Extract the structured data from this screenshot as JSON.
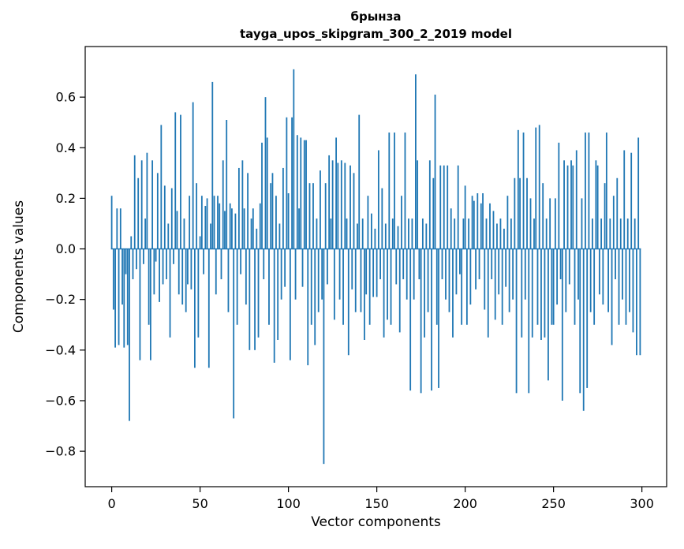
{
  "chart_data": {
    "type": "bar",
    "title": "брынза",
    "subtitle": "tayga_upos_skipgram_300_2_2019 model",
    "xlabel": "Vector components",
    "ylabel": "Components values",
    "xlim": [
      -15,
      314
    ],
    "ylim": [
      -0.94,
      0.8
    ],
    "xticks": [
      0,
      50,
      100,
      150,
      200,
      250,
      300
    ],
    "yticks": [
      0.6,
      0.4,
      0.2,
      0.0,
      -0.2,
      -0.4,
      -0.6,
      -0.8
    ],
    "bar_color": "#1f77b4",
    "axis_color": "#000000",
    "values": [
      0.21,
      -0.24,
      -0.39,
      0.16,
      -0.38,
      0.16,
      -0.22,
      -0.39,
      -0.1,
      -0.38,
      -0.68,
      0.05,
      -0.12,
      0.37,
      -0.08,
      0.28,
      -0.44,
      0.35,
      -0.06,
      0.12,
      0.38,
      -0.3,
      -0.44,
      0.35,
      -0.18,
      -0.05,
      0.3,
      -0.21,
      0.49,
      -0.14,
      0.25,
      -0.12,
      0.1,
      -0.35,
      0.24,
      -0.06,
      0.54,
      0.15,
      -0.18,
      0.53,
      -0.22,
      0.12,
      -0.25,
      -0.14,
      0.21,
      -0.16,
      0.58,
      -0.47,
      0.26,
      -0.35,
      0.05,
      0.21,
      -0.1,
      0.17,
      0.2,
      -0.47,
      0.1,
      0.66,
      0.21,
      -0.18,
      0.21,
      0.18,
      -0.12,
      0.35,
      0.15,
      0.51,
      -0.25,
      0.18,
      0.16,
      -0.67,
      0.14,
      -0.3,
      0.32,
      -0.1,
      0.35,
      0.16,
      -0.22,
      0.3,
      -0.4,
      0.12,
      0.16,
      -0.4,
      0.08,
      -0.35,
      0.18,
      0.42,
      -0.12,
      0.6,
      0.44,
      -0.3,
      0.26,
      0.3,
      -0.45,
      0.21,
      -0.36,
      0.1,
      -0.2,
      0.32,
      -0.15,
      0.52,
      0.22,
      -0.44,
      0.52,
      0.71,
      -0.2,
      0.45,
      0.16,
      0.44,
      -0.15,
      0.43,
      0.43,
      -0.46,
      0.26,
      -0.3,
      0.26,
      -0.38,
      0.12,
      -0.25,
      0.31,
      -0.2,
      -0.85,
      0.26,
      -0.14,
      0.37,
      0.12,
      0.35,
      -0.28,
      0.44,
      0.34,
      -0.2,
      0.35,
      -0.3,
      0.34,
      0.12,
      -0.42,
      0.33,
      -0.16,
      0.3,
      -0.25,
      0.1,
      0.53,
      -0.25,
      0.12,
      -0.36,
      -0.18,
      0.21,
      -0.3,
      0.14,
      -0.19,
      0.08,
      -0.19,
      0.39,
      -0.12,
      0.24,
      -0.35,
      0.1,
      -0.28,
      0.46,
      -0.3,
      0.12,
      0.46,
      -0.14,
      0.09,
      -0.33,
      0.21,
      -0.12,
      0.46,
      -0.2,
      0.12,
      -0.56,
      0.12,
      -0.2,
      0.69,
      0.35,
      -0.12,
      -0.57,
      0.12,
      -0.35,
      0.1,
      -0.25,
      0.35,
      -0.56,
      0.28,
      0.61,
      -0.3,
      -0.55,
      0.33,
      -0.12,
      0.33,
      -0.2,
      0.33,
      -0.25,
      0.16,
      -0.35,
      0.12,
      -0.18,
      0.33,
      -0.1,
      -0.3,
      0.12,
      0.25,
      -0.3,
      0.12,
      -0.22,
      0.21,
      0.19,
      -0.16,
      0.22,
      -0.12,
      0.18,
      0.22,
      -0.24,
      0.12,
      -0.35,
      0.18,
      -0.12,
      0.15,
      -0.28,
      0.1,
      -0.18,
      0.12,
      -0.3,
      0.08,
      -0.15,
      0.21,
      -0.25,
      0.12,
      -0.2,
      0.28,
      -0.57,
      0.47,
      0.28,
      -0.35,
      0.46,
      -0.2,
      0.28,
      -0.57,
      0.2,
      -0.35,
      0.12,
      0.48,
      -0.3,
      0.49,
      -0.36,
      0.26,
      -0.35,
      0.12,
      -0.52,
      0.2,
      -0.3,
      -0.3,
      0.2,
      -0.22,
      0.42,
      -0.12,
      -0.6,
      0.35,
      -0.25,
      0.33,
      -0.14,
      0.35,
      0.33,
      -0.3,
      0.39,
      -0.2,
      -0.57,
      0.2,
      -0.64,
      0.46,
      -0.55,
      0.46,
      -0.25,
      0.12,
      -0.3,
      0.35,
      0.33,
      -0.18,
      0.12,
      -0.22,
      0.26,
      0.46,
      -0.25,
      0.12,
      -0.38,
      0.21,
      -0.12,
      0.28,
      -0.3,
      0.12,
      -0.2,
      0.39,
      -0.3,
      0.12,
      -0.25,
      0.38,
      -0.33,
      0.12,
      -0.42,
      0.44,
      -0.42
    ]
  }
}
